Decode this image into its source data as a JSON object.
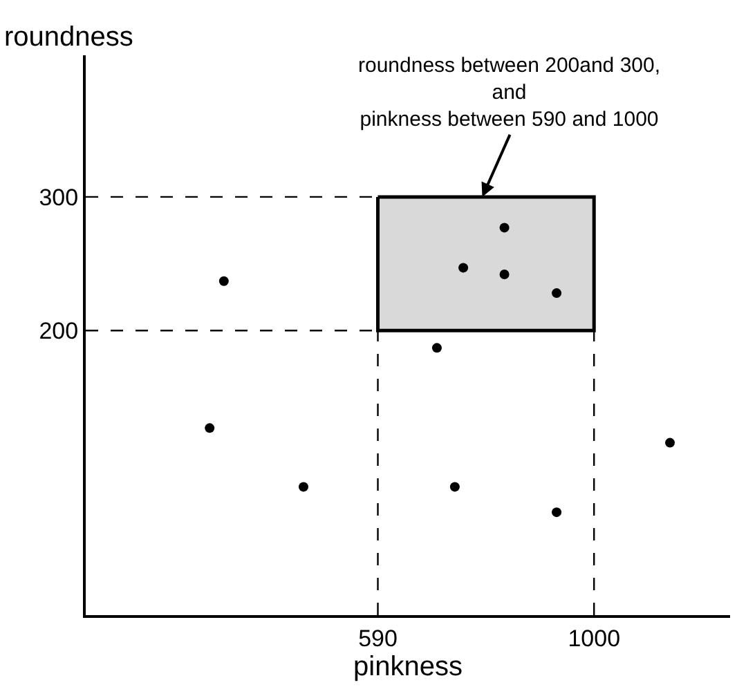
{
  "chart_data": {
    "type": "scatter",
    "xlabel": "pinkness",
    "ylabel": "roundness",
    "xlim": [
      36,
      1258
    ],
    "ylim": [
      -13,
      406
    ],
    "xticks": [
      590,
      1000
    ],
    "yticks": [
      200,
      300
    ],
    "grid": false,
    "marker": "circle",
    "series": [
      {
        "type": "area",
        "marker": "none",
        "color": "#d9d9d9",
        "x": [
          590,
          1000,
          1000,
          590,
          590
        ],
        "values": [
          300,
          300,
          200,
          200,
          300
        ]
      },
      {
        "color": "#000000",
        "x": [
          298,
          271,
          449,
          702,
          752,
          830,
          830,
          929,
          736,
          929,
          1144
        ],
        "values": [
          237,
          127,
          83,
          187,
          247,
          277,
          242,
          228,
          83,
          64,
          116
        ]
      }
    ],
    "ref_lines": [
      {
        "axis": "x",
        "value": 590,
        "color": "#000000",
        "line_style": "dashed"
      },
      {
        "axis": "x",
        "value": 1000,
        "color": "#000000",
        "line_style": "dashed"
      },
      {
        "axis": "y",
        "value": 200,
        "color": "#000000",
        "line_style": "dashed"
      },
      {
        "axis": "y",
        "value": 300,
        "color": "#000000",
        "line_style": "dashed"
      }
    ],
    "annotations": [
      {
        "text": "roundness between 200and 300,\nand\npinkness between 590 and 1000",
        "x": 788,
        "y": 300
      }
    ]
  }
}
